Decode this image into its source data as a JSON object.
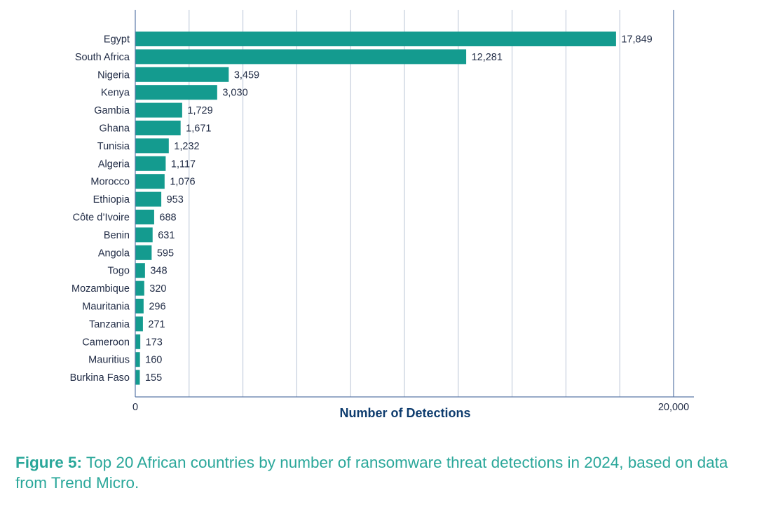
{
  "chart_data": {
    "type": "bar",
    "orientation": "horizontal",
    "categories": [
      "Egypt",
      "South Africa",
      "Nigeria",
      "Kenya",
      "Gambia",
      "Ghana",
      "Tunisia",
      "Algeria",
      "Morocco",
      "Ethiopia",
      "Côte d’Ivoire",
      "Benin",
      "Angola",
      "Togo",
      "Mozambique",
      "Mauritania",
      "Tanzania",
      "Cameroon",
      "Mauritius",
      "Burkina Faso"
    ],
    "values": [
      17849,
      12281,
      3459,
      3030,
      1729,
      1671,
      1232,
      1117,
      1076,
      953,
      688,
      631,
      595,
      348,
      320,
      296,
      271,
      173,
      160,
      155
    ],
    "value_labels": [
      "17,849",
      "12,281",
      "3,459",
      "3,030",
      "1,729",
      "1,671",
      "1,232",
      "1,117",
      "1,076",
      "953",
      "688",
      "631",
      "595",
      "348",
      "320",
      "296",
      "271",
      "173",
      "160",
      "155"
    ],
    "xlabel": "Number of Detections",
    "xlim": [
      0,
      20000
    ],
    "xticks": [
      0,
      20000
    ],
    "xtick_labels": [
      "0",
      "20,000"
    ],
    "gridlines": true,
    "bar_color": "#149b8f",
    "grid_color": "#b9c4d6"
  },
  "caption": {
    "label": "Figure 5:",
    "text": " Top 20 African countries by number of ransomware threat detections in 2024, based on data from Trend Micro.",
    "color": "#2aa79a"
  }
}
